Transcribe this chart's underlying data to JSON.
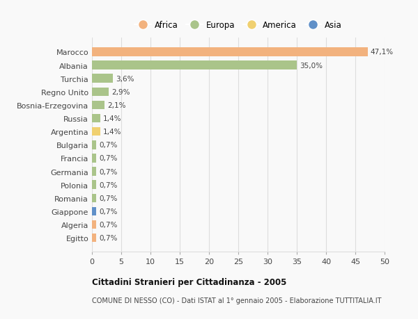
{
  "countries": [
    "Marocco",
    "Albania",
    "Turchia",
    "Regno Unito",
    "Bosnia-Erzegovina",
    "Russia",
    "Argentina",
    "Bulgaria",
    "Francia",
    "Germania",
    "Polonia",
    "Romania",
    "Giappone",
    "Algeria",
    "Egitto"
  ],
  "values": [
    47.1,
    35.0,
    3.6,
    2.9,
    2.1,
    1.4,
    1.4,
    0.7,
    0.7,
    0.7,
    0.7,
    0.7,
    0.7,
    0.7,
    0.7
  ],
  "labels": [
    "47,1%",
    "35,0%",
    "3,6%",
    "2,9%",
    "2,1%",
    "1,4%",
    "1,4%",
    "0,7%",
    "0,7%",
    "0,7%",
    "0,7%",
    "0,7%",
    "0,7%",
    "0,7%",
    "0,7%"
  ],
  "colors": [
    "#F2B27E",
    "#AAC48A",
    "#AAC48A",
    "#AAC48A",
    "#AAC48A",
    "#AAC48A",
    "#F0D070",
    "#AAC48A",
    "#AAC48A",
    "#AAC48A",
    "#AAC48A",
    "#AAC48A",
    "#6090C8",
    "#F2B27E",
    "#F2B27E"
  ],
  "legend_labels": [
    "Africa",
    "Europa",
    "America",
    "Asia"
  ],
  "legend_colors": [
    "#F2B27E",
    "#AAC48A",
    "#F0D070",
    "#6090C8"
  ],
  "xlim": [
    0,
    50
  ],
  "xticks": [
    0,
    5,
    10,
    15,
    20,
    25,
    30,
    35,
    40,
    45,
    50
  ],
  "title": "Cittadini Stranieri per Cittadinanza - 2005",
  "subtitle": "COMUNE DI NESSO (CO) - Dati ISTAT al 1° gennaio 2005 - Elaborazione TUTTITALIA.IT",
  "background_color": "#f9f9f9",
  "grid_color": "#dddddd"
}
